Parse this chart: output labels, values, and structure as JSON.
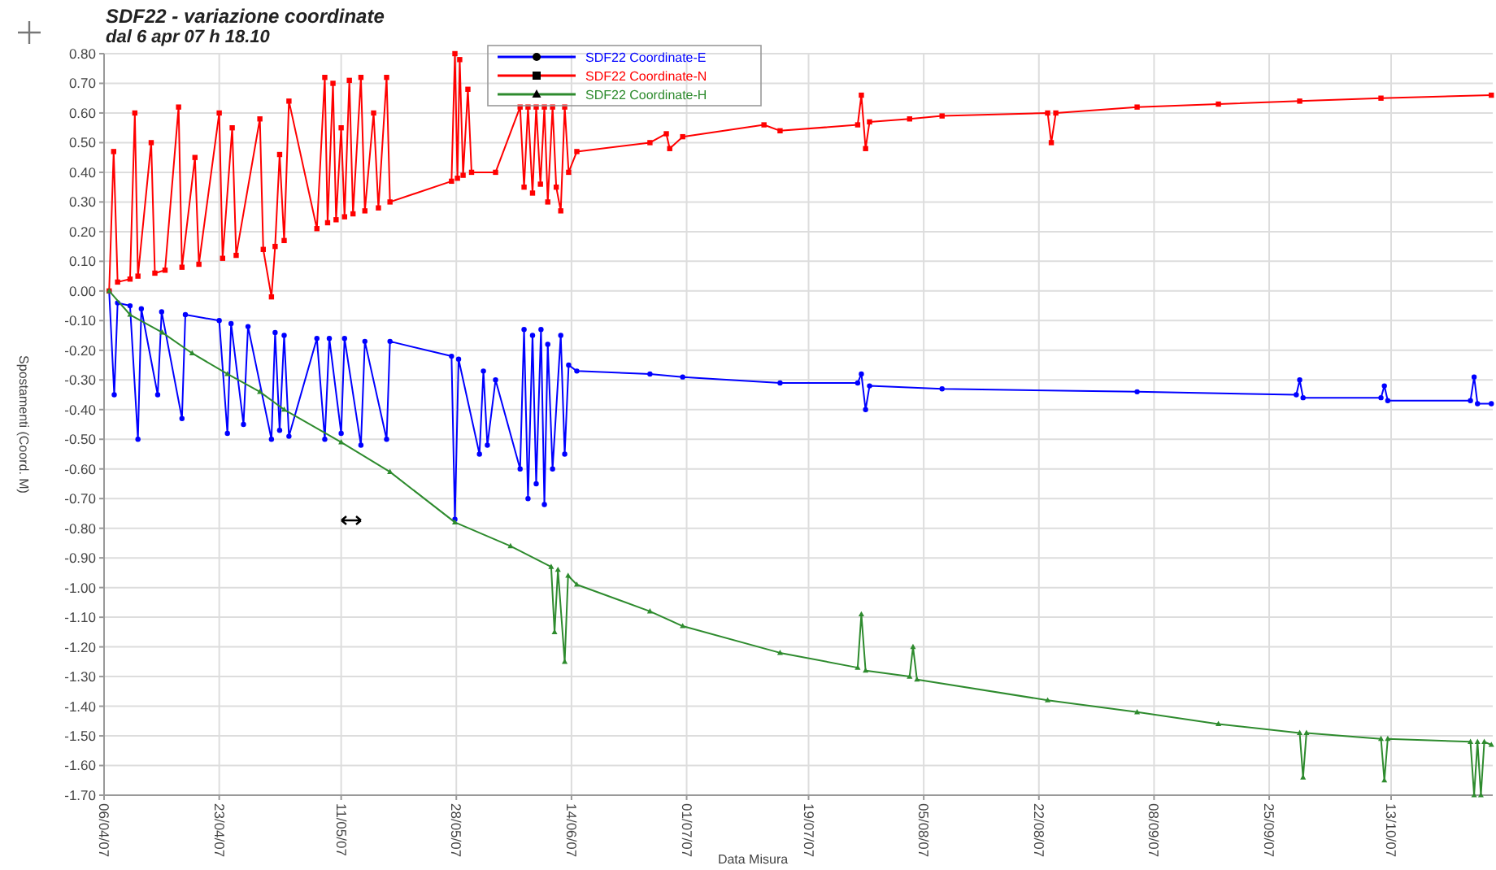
{
  "chart_data": {
    "type": "line",
    "title": "SDF22 - variazione coordinate",
    "subtitle": "dal 6 apr 07 h 18.10",
    "xlabel": "Data Misura",
    "ylabel": "Spostamenti (Coord. M)",
    "xlim": [
      "2007-04-06",
      "2007-10-28"
    ],
    "xticks": [
      {
        "value": "2007-04-06",
        "label": "06/04/07"
      },
      {
        "value": "2007-04-23",
        "label": "23/04/07"
      },
      {
        "value": "2007-05-11",
        "label": "11/05/07"
      },
      {
        "value": "2007-05-28",
        "label": "28/05/07"
      },
      {
        "value": "2007-06-14",
        "label": "14/06/07"
      },
      {
        "value": "2007-07-01",
        "label": "01/07/07"
      },
      {
        "value": "2007-07-19",
        "label": "19/07/07"
      },
      {
        "value": "2007-08-05",
        "label": "05/08/07"
      },
      {
        "value": "2007-08-22",
        "label": "22/08/07"
      },
      {
        "value": "2007-09-08",
        "label": "08/09/07"
      },
      {
        "value": "2007-09-25",
        "label": "25/09/07"
      },
      {
        "value": "2007-10-13",
        "label": "13/10/07"
      }
    ],
    "ylim": [
      -1.7,
      0.8
    ],
    "yticks": [
      {
        "value": -1.7,
        "label": "-1.70"
      },
      {
        "value": -1.6,
        "label": "-1.60"
      },
      {
        "value": -1.5,
        "label": "-1.50"
      },
      {
        "value": -1.4,
        "label": "-1.40"
      },
      {
        "value": -1.3,
        "label": "-1.30"
      },
      {
        "value": -1.2,
        "label": "-1.20"
      },
      {
        "value": -1.1,
        "label": "-1.10"
      },
      {
        "value": -1.0,
        "label": "-1.00"
      },
      {
        "value": -0.9,
        "label": "-0.90"
      },
      {
        "value": -0.8,
        "label": "-0.80"
      },
      {
        "value": -0.7,
        "label": "-0.70"
      },
      {
        "value": -0.6,
        "label": "-0.60"
      },
      {
        "value": -0.5,
        "label": "-0.50"
      },
      {
        "value": -0.4,
        "label": "-0.40"
      },
      {
        "value": -0.3,
        "label": "-0.30"
      },
      {
        "value": -0.2,
        "label": "-0.20"
      },
      {
        "value": -0.1,
        "label": "-0.10"
      },
      {
        "value": 0,
        "label": "0.00"
      },
      {
        "value": 0.1,
        "label": "0.10"
      },
      {
        "value": 0.2,
        "label": "0.20"
      },
      {
        "value": 0.3,
        "label": "0.30"
      },
      {
        "value": 0.4,
        "label": "0.40"
      },
      {
        "value": 0.5,
        "label": "0.50"
      },
      {
        "value": 0.6,
        "label": "0.60"
      },
      {
        "value": 0.7,
        "label": "0.70"
      },
      {
        "value": 0.8,
        "label": "0.80"
      }
    ],
    "grid": true,
    "legend": "top",
    "line_style": "solid",
    "series": [
      {
        "name": "SDF22 Coordinate-E",
        "color": "#0000ff",
        "marker": "circle",
        "x": [
          "2007-04-06T18:00",
          "2007-04-07T12:00",
          "2007-04-08T00:00",
          "2007-04-09T20:00",
          "2007-04-11T00:00",
          "2007-04-11T12:00",
          "2007-04-13T22:00",
          "2007-04-14T12:00",
          "2007-04-17T12:00",
          "2007-04-18T00:00",
          "2007-04-23T00:00",
          "2007-04-24T05:00",
          "2007-04-24T18:00",
          "2007-04-26T14:00",
          "2007-04-27T06:00",
          "2007-04-30T17:00",
          "2007-05-01T06:00",
          "2007-05-01T22:00",
          "2007-05-02T14:00",
          "2007-05-03T07:00",
          "2007-05-07T10:00",
          "2007-05-08T14:00",
          "2007-05-09T06:00",
          "2007-05-11T00:00",
          "2007-05-11T12:00",
          "2007-05-13T22:00",
          "2007-05-14T12:00",
          "2007-05-17T17:00",
          "2007-05-18T05:00",
          "2007-05-27T07:00",
          "2007-05-27T19:00",
          "2007-05-28T08:00",
          "2007-05-31T10:00",
          "2007-06-01T00:00",
          "2007-06-01T14:00",
          "2007-06-02T19:00",
          "2007-06-06T10:00",
          "2007-06-07T00:00",
          "2007-06-07T14:00",
          "2007-06-08T06:00",
          "2007-06-08T19:00",
          "2007-06-09T12:00",
          "2007-06-10T00:00",
          "2007-06-10T12:00",
          "2007-06-11T05:00",
          "2007-06-12T10:00",
          "2007-06-13T00:00",
          "2007-06-13T14:00",
          "2007-06-14T19:00",
          "2007-06-25T14:00",
          "2007-06-30T10:00",
          "2007-07-14T19:00",
          "2007-07-26T06:00",
          "2007-07-26T19:00",
          "2007-07-27T10:00",
          "2007-07-28T00:00",
          "2007-08-07T17:00",
          "2007-09-05T12:00",
          "2007-09-29T00:00",
          "2007-09-29T12:00",
          "2007-09-30T00:00",
          "2007-10-11T12:00",
          "2007-10-12T00:00",
          "2007-10-12T12:00",
          "2007-10-24T17:00",
          "2007-10-25T06:00",
          "2007-10-25T18:00",
          "2007-10-27T19:00"
        ],
        "values": [
          0,
          -0.35,
          -0.04,
          -0.05,
          -0.5,
          -0.06,
          -0.35,
          -0.07,
          -0.43,
          -0.08,
          -0.1,
          -0.48,
          -0.11,
          -0.45,
          -0.12,
          -0.5,
          -0.14,
          -0.47,
          -0.15,
          -0.49,
          -0.16,
          -0.5,
          -0.16,
          -0.48,
          -0.16,
          -0.52,
          -0.17,
          -0.5,
          -0.17,
          -0.22,
          -0.77,
          -0.23,
          -0.55,
          -0.27,
          -0.52,
          -0.3,
          -0.6,
          -0.13,
          -0.7,
          -0.15,
          -0.65,
          -0.13,
          -0.72,
          -0.18,
          -0.6,
          -0.15,
          -0.55,
          -0.25,
          -0.27,
          -0.28,
          -0.29,
          -0.31,
          -0.31,
          -0.28,
          -0.4,
          -0.32,
          -0.33,
          -0.34,
          -0.35,
          -0.3,
          -0.36,
          -0.36,
          -0.32,
          -0.37,
          -0.37,
          -0.29,
          -0.38,
          -0.38
        ]
      },
      {
        "name": "SDF22 Coordinate-N",
        "color": "#ff0000",
        "marker": "square",
        "x": [
          "2007-04-06T18:00",
          "2007-04-07T10:00",
          "2007-04-08T00:00",
          "2007-04-09T20:00",
          "2007-04-10T13:00",
          "2007-04-11T00:00",
          "2007-04-12T23:00",
          "2007-04-13T12:00",
          "2007-04-15T00:00",
          "2007-04-17T00:00",
          "2007-04-17T12:00",
          "2007-04-19T10:00",
          "2007-04-20T00:00",
          "2007-04-23T00:00",
          "2007-04-23T12:00",
          "2007-04-24T22:00",
          "2007-04-25T12:00",
          "2007-04-29T00:00",
          "2007-04-29T12:00",
          "2007-04-30T17:00",
          "2007-05-01T06:00",
          "2007-05-01T22:00",
          "2007-05-02T14:00",
          "2007-05-03T07:00",
          "2007-05-07T10:00",
          "2007-05-08T14:00",
          "2007-05-09T00:00",
          "2007-05-09T19:00",
          "2007-05-10T06:00",
          "2007-05-11T00:00",
          "2007-05-11T12:00",
          "2007-05-12T05:00",
          "2007-05-12T18:00",
          "2007-05-13T22:00",
          "2007-05-14T12:00",
          "2007-05-15T19:00",
          "2007-05-16T12:00",
          "2007-05-17T17:00",
          "2007-05-18T05:00",
          "2007-05-27T07:00",
          "2007-05-27T19:00",
          "2007-05-28T04:00",
          "2007-05-28T12:00",
          "2007-05-29T00:00",
          "2007-05-29T17:00",
          "2007-05-30T06:00",
          "2007-06-02T19:00",
          "2007-06-06T10:00",
          "2007-06-07T00:00",
          "2007-06-07T14:00",
          "2007-06-08T06:00",
          "2007-06-08T19:00",
          "2007-06-09T10:00",
          "2007-06-10T00:00",
          "2007-06-10T12:00",
          "2007-06-11T05:00",
          "2007-06-11T18:00",
          "2007-06-12T10:00",
          "2007-06-13T00:00",
          "2007-06-13T14:00",
          "2007-06-14T19:00",
          "2007-06-25T14:00",
          "2007-06-28T00:00",
          "2007-06-28T12:00",
          "2007-06-30T10:00",
          "2007-07-12T10:00",
          "2007-07-14T19:00",
          "2007-07-26T06:00",
          "2007-07-26T19:00",
          "2007-07-27T10:00",
          "2007-07-28T00:00",
          "2007-08-02T22:00",
          "2007-08-07T17:00",
          "2007-08-23T07:00",
          "2007-08-23T20:00",
          "2007-08-24T12:00",
          "2007-09-05T12:00",
          "2007-09-17T12:00",
          "2007-09-29T12:00",
          "2007-10-11T12:00",
          "2007-10-27T19:00"
        ],
        "values": [
          0,
          0.47,
          0.03,
          0.04,
          0.6,
          0.05,
          0.5,
          0.06,
          0.07,
          0.62,
          0.08,
          0.45,
          0.09,
          0.6,
          0.11,
          0.55,
          0.12,
          0.58,
          0.14,
          -0.02,
          0.15,
          0.46,
          0.17,
          0.64,
          0.21,
          0.72,
          0.23,
          0.7,
          0.24,
          0.55,
          0.25,
          0.71,
          0.26,
          0.72,
          0.27,
          0.6,
          0.28,
          0.72,
          0.3,
          0.37,
          0.8,
          0.38,
          0.78,
          0.39,
          0.68,
          0.4,
          0.4,
          0.62,
          0.35,
          0.62,
          0.33,
          0.62,
          0.36,
          0.62,
          0.3,
          0.62,
          0.35,
          0.27,
          0.62,
          0.4,
          0.47,
          0.5,
          0.53,
          0.48,
          0.52,
          0.56,
          0.54,
          0.56,
          0.66,
          0.48,
          0.57,
          0.58,
          0.59,
          0.6,
          0.5,
          0.6,
          0.62,
          0.63,
          0.64,
          0.65,
          0.66
        ]
      },
      {
        "name": "SDF22 Coordinate-H",
        "color": "#2e8b2e",
        "marker": "triangle",
        "x": [
          "2007-04-06T18:00",
          "2007-04-09T20:00",
          "2007-04-14T14:00",
          "2007-04-19T00:00",
          "2007-04-24T05:00",
          "2007-04-29T00:00",
          "2007-05-02T14:00",
          "2007-05-11T00:00",
          "2007-05-18T05:00",
          "2007-05-27T19:00",
          "2007-06-05T00:00",
          "2007-06-11T00:00",
          "2007-06-11T12:00",
          "2007-06-12T00:00",
          "2007-06-13T00:00",
          "2007-06-13T12:00",
          "2007-06-14T19:00",
          "2007-06-25T14:00",
          "2007-06-30T10:00",
          "2007-07-14T19:00",
          "2007-07-26T06:00",
          "2007-07-26T19:00",
          "2007-07-27T10:00",
          "2007-08-02T22:00",
          "2007-08-03T10:00",
          "2007-08-04T00:00",
          "2007-08-23T07:00",
          "2007-09-05T12:00",
          "2007-09-17T12:00",
          "2007-09-29T12:00",
          "2007-09-30T00:00",
          "2007-09-30T12:00",
          "2007-10-11T12:00",
          "2007-10-12T00:00",
          "2007-10-12T12:00",
          "2007-10-24T17:00",
          "2007-10-25T06:00",
          "2007-10-25T18:00",
          "2007-10-26T06:00",
          "2007-10-26T18:00",
          "2007-10-27T19:00"
        ],
        "values": [
          0,
          -0.08,
          -0.14,
          -0.21,
          -0.28,
          -0.34,
          -0.4,
          -0.51,
          -0.61,
          -0.78,
          -0.86,
          -0.93,
          -1.15,
          -0.94,
          -1.25,
          -0.96,
          -0.99,
          -1.08,
          -1.13,
          -1.22,
          -1.27,
          -1.09,
          -1.28,
          -1.3,
          -1.2,
          -1.31,
          -1.38,
          -1.42,
          -1.46,
          -1.49,
          -1.64,
          -1.49,
          -1.51,
          -1.65,
          -1.51,
          -1.52,
          -1.7,
          -1.52,
          -1.7,
          -1.52,
          -1.53
        ]
      }
    ]
  }
}
